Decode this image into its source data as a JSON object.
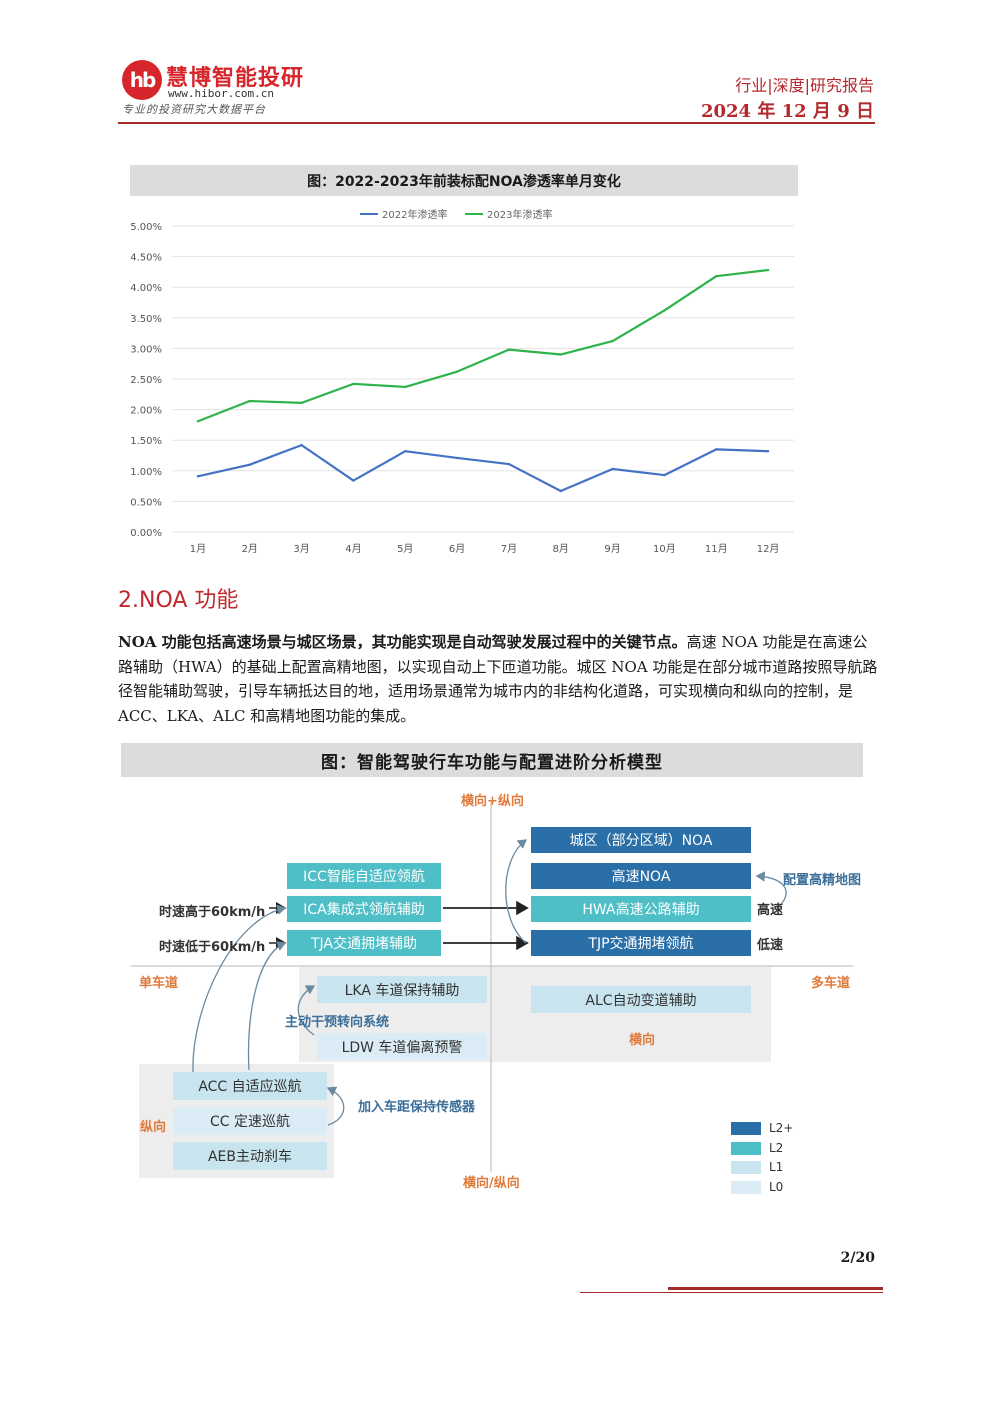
{
  "header": {
    "logo_mark": "hb",
    "logo_name": "慧博智能投研",
    "logo_url": "www.hibor.com.cn",
    "logo_slogan": "专业的投资研究大数据平台",
    "category": "行业|深度|研究报告",
    "date": "2024 年 12 月 9 日"
  },
  "figure1": {
    "title": "图：2022-2023年前装标配NOA渗透率单月变化"
  },
  "chart_data": {
    "type": "line",
    "categories": [
      "1月",
      "2月",
      "3月",
      "4月",
      "5月",
      "6月",
      "7月",
      "8月",
      "9月",
      "10月",
      "11月",
      "12月"
    ],
    "series": [
      {
        "name": "2022年渗透率",
        "color": "#4472c4",
        "values": [
          0.91,
          1.1,
          1.42,
          0.84,
          1.32,
          1.21,
          1.11,
          0.67,
          1.03,
          0.93,
          1.35,
          1.32
        ]
      },
      {
        "name": "2023年渗透率",
        "color": "#2db34a",
        "values": [
          1.81,
          2.14,
          2.11,
          2.42,
          2.37,
          2.62,
          2.98,
          2.9,
          3.12,
          3.62,
          4.18,
          4.28
        ]
      }
    ],
    "yticks": [
      "0.00%",
      "0.50%",
      "1.00%",
      "1.50%",
      "2.00%",
      "2.50%",
      "3.00%",
      "3.50%",
      "4.00%",
      "4.50%",
      "5.00%"
    ],
    "ylim": [
      0,
      5
    ],
    "grid": true,
    "legend": "top-center"
  },
  "section": {
    "title": "2.NOA 功能",
    "para_bold": "NOA 功能包括高速场景与城区场景，其功能实现是自动驾驶发展过程中的关键节点。",
    "para_rest": "高速 NOA 功能是在高速公路辅助（HWA）的基础上配置高精地图，以实现自动上下匝道功能。城区 NOA 功能是在部分城市道路按照导航路径智能辅助驾驶，引导车辆抵达目的地，适用场景通常为城市内的非结构化道路，可实现横向和纵向的控制，是 ACC、LKA、ALC 和高精地图功能的集成。"
  },
  "figure2": {
    "title": "图：智能驾驶行车功能与配置进阶分析模型",
    "axis_top": "横向+纵向",
    "axis_bottom": "横向/纵向",
    "axis_left": "单车道",
    "axis_right": "多车道",
    "boxes": {
      "city_noa": "城区（部分区域）NOA",
      "highway_noa": "高速NOA",
      "hwa": "HWA高速公路辅助",
      "tjp": "TJP交通拥堵领航",
      "icc": "ICC智能自适应领航",
      "ica": "ICA集成式领航辅助",
      "tja": "TJA交通拥堵辅助",
      "lka": "LKA 车道保持辅助",
      "ldw": "LDW 车道偏离预警",
      "alc": "ALC自动变道辅助",
      "acc": "ACC 自适应巡航",
      "cc": "CC 定速巡航",
      "aeb": "AEB主动刹车"
    },
    "labels": {
      "speed_high": "时速高于60km/h",
      "speed_low": "时速低于60km/h",
      "hd_map": "配置高精地图",
      "high_speed": "高速",
      "low_speed": "低速",
      "steering": "主动干预转向系统",
      "lateral": "横向",
      "longitudinal": "纵向",
      "sensor": "加入车距保持传感器"
    },
    "legend": [
      {
        "label": "L2+",
        "color": "#2a6fa8"
      },
      {
        "label": "L2",
        "color": "#4fbfc7"
      },
      {
        "label": "L1",
        "color": "#c8e4ee"
      },
      {
        "label": "L0",
        "color": "#dcecf6"
      }
    ]
  },
  "footer": {
    "page": "2/20"
  }
}
